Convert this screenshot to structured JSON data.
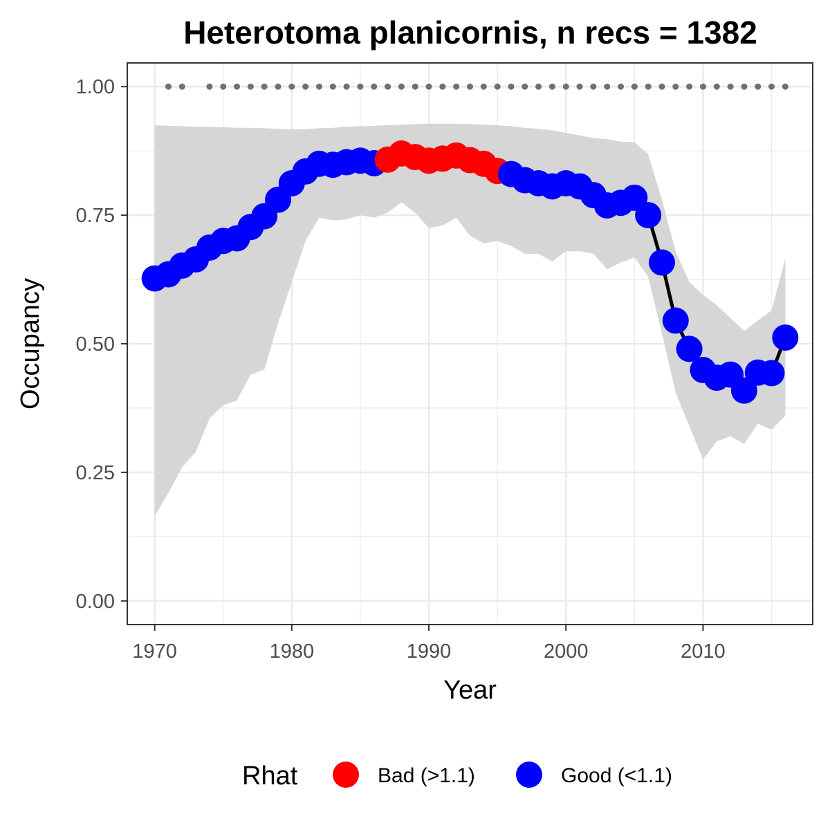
{
  "chart_data": {
    "type": "line",
    "title": "Heterotoma planicornis, n recs = 1382",
    "xlabel": "Year",
    "ylabel": "Occupancy",
    "xlim": [
      1968,
      2018
    ],
    "ylim": [
      -0.046,
      1.046
    ],
    "x_ticks": [
      1970,
      1980,
      1990,
      2000,
      2010
    ],
    "y_ticks": [
      0.0,
      0.25,
      0.5,
      0.75,
      1.0
    ],
    "y_tick_labels": [
      "0.00",
      "0.25",
      "0.50",
      "0.75",
      "1.00"
    ],
    "grid": true,
    "legend": {
      "title": "Rhat",
      "position": "bottom",
      "entries": [
        {
          "label": "Bad (>1.1)",
          "color": "#ff0000"
        },
        {
          "label": "Good (<1.1)",
          "color": "#0000ff"
        }
      ]
    },
    "colors": {
      "bad": "#ff0000",
      "good": "#0000ff",
      "ribbon": "#d6d6d6",
      "line": "#000000",
      "record_dots": "#707070"
    },
    "series": [
      {
        "x": [
          1970,
          1971,
          1972,
          1973,
          1974,
          1975,
          1976,
          1977,
          1978,
          1979,
          1980,
          1981,
          1982,
          1983,
          1984,
          1985,
          1986,
          1987,
          1988,
          1989,
          1990,
          1991,
          1992,
          1993,
          1994,
          1995,
          1996,
          1997,
          1998,
          1999,
          2000,
          2001,
          2002,
          2003,
          2004,
          2005,
          2006,
          2007,
          2008,
          2009,
          2010,
          2011,
          2012,
          2013,
          2014,
          2015,
          2016
        ],
        "values": [
          0.627,
          0.635,
          0.652,
          0.664,
          0.687,
          0.7,
          0.705,
          0.727,
          0.748,
          0.78,
          0.812,
          0.835,
          0.85,
          0.848,
          0.853,
          0.856,
          0.851,
          0.858,
          0.87,
          0.863,
          0.856,
          0.86,
          0.866,
          0.857,
          0.85,
          0.836,
          0.83,
          0.818,
          0.812,
          0.806,
          0.812,
          0.806,
          0.789,
          0.769,
          0.774,
          0.784,
          0.75,
          0.658,
          0.545,
          0.49,
          0.449,
          0.434,
          0.44,
          0.409,
          0.444,
          0.443,
          0.512
        ],
        "rhat": [
          "Good",
          "Good",
          "Good",
          "Good",
          "Good",
          "Good",
          "Good",
          "Good",
          "Good",
          "Good",
          "Good",
          "Good",
          "Good",
          "Good",
          "Good",
          "Good",
          "Good",
          "Bad",
          "Bad",
          "Bad",
          "Bad",
          "Bad",
          "Bad",
          "Bad",
          "Bad",
          "Bad",
          "Good",
          "Good",
          "Good",
          "Good",
          "Good",
          "Good",
          "Good",
          "Good",
          "Good",
          "Good",
          "Good",
          "Good",
          "Good",
          "Good",
          "Good",
          "Good",
          "Good",
          "Good",
          "Good",
          "Good",
          "Good"
        ],
        "lower": [
          0.165,
          0.21,
          0.26,
          0.29,
          0.355,
          0.38,
          0.39,
          0.44,
          0.45,
          0.54,
          0.62,
          0.7,
          0.745,
          0.74,
          0.742,
          0.75,
          0.745,
          0.755,
          0.775,
          0.755,
          0.725,
          0.73,
          0.745,
          0.71,
          0.695,
          0.7,
          0.69,
          0.675,
          0.675,
          0.66,
          0.68,
          0.68,
          0.675,
          0.645,
          0.658,
          0.668,
          0.63,
          0.52,
          0.405,
          0.34,
          0.275,
          0.31,
          0.32,
          0.305,
          0.345,
          0.333,
          0.36
        ],
        "upper": [
          0.925,
          0.924,
          0.923,
          0.922,
          0.922,
          0.921,
          0.92,
          0.92,
          0.919,
          0.918,
          0.917,
          0.917,
          0.919,
          0.92,
          0.922,
          0.923,
          0.924,
          0.925,
          0.926,
          0.927,
          0.928,
          0.928,
          0.928,
          0.927,
          0.926,
          0.925,
          0.923,
          0.92,
          0.918,
          0.915,
          0.91,
          0.905,
          0.9,
          0.898,
          0.893,
          0.892,
          0.868,
          0.78,
          0.68,
          0.62,
          0.595,
          0.575,
          0.55,
          0.525,
          0.545,
          0.565,
          0.665
        ]
      }
    ],
    "record_years": [
      1971,
      1972,
      1974,
      1975,
      1976,
      1977,
      1978,
      1979,
      1980,
      1981,
      1982,
      1983,
      1984,
      1985,
      1986,
      1987,
      1988,
      1989,
      1990,
      1991,
      1992,
      1993,
      1994,
      1995,
      1996,
      1997,
      1998,
      1999,
      2000,
      2001,
      2002,
      2003,
      2004,
      2005,
      2006,
      2007,
      2008,
      2009,
      2010,
      2011,
      2012,
      2013,
      2014,
      2015,
      2016
    ],
    "record_y": 1.0
  }
}
